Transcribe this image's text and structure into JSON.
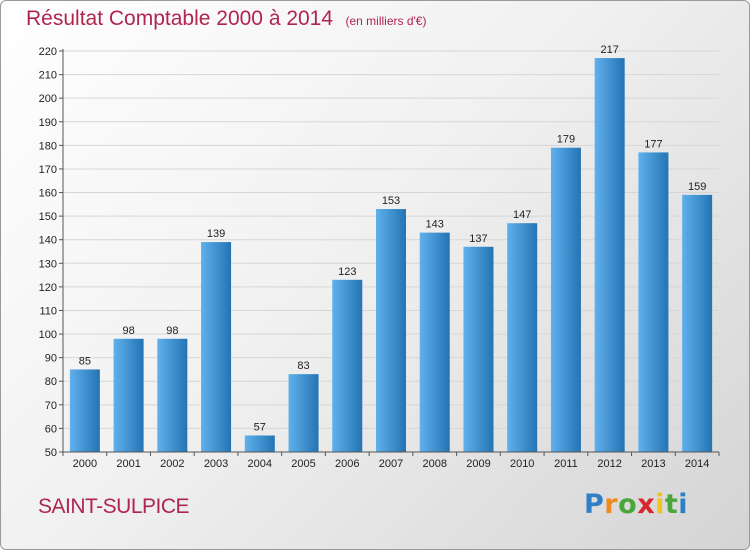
{
  "title": "Résultat Comptable 2000 à 2014",
  "subtitle": "(en milliers d'€)",
  "city": "SAINT-SULPICE",
  "logo": {
    "letters": [
      "P",
      "r",
      "o",
      "x",
      "i",
      "t",
      "i"
    ],
    "colors": [
      "#2f7fc6",
      "#f08a1c",
      "#4aa53b",
      "#d8262d",
      "#f0c419",
      "#4aa53b",
      "#2f7fc6"
    ]
  },
  "colors": {
    "accent": "#b0254f",
    "bar_light": "#5fb1ec",
    "bar_dark": "#2474b4"
  },
  "chart_data": {
    "type": "bar",
    "title": "Résultat Comptable 2000 à 2014",
    "subtitle": "(en milliers d'€)",
    "categories": [
      "2000",
      "2001",
      "2002",
      "2003",
      "2004",
      "2005",
      "2006",
      "2007",
      "2008",
      "2009",
      "2010",
      "2011",
      "2012",
      "2013",
      "2014"
    ],
    "values": [
      85,
      98,
      98,
      139,
      57,
      83,
      123,
      153,
      143,
      137,
      147,
      179,
      217,
      177,
      159
    ],
    "ylim": [
      50,
      220
    ],
    "yticks": [
      50,
      60,
      70,
      80,
      90,
      100,
      110,
      120,
      130,
      140,
      150,
      160,
      170,
      180,
      190,
      200,
      210,
      220
    ],
    "grid": true
  }
}
